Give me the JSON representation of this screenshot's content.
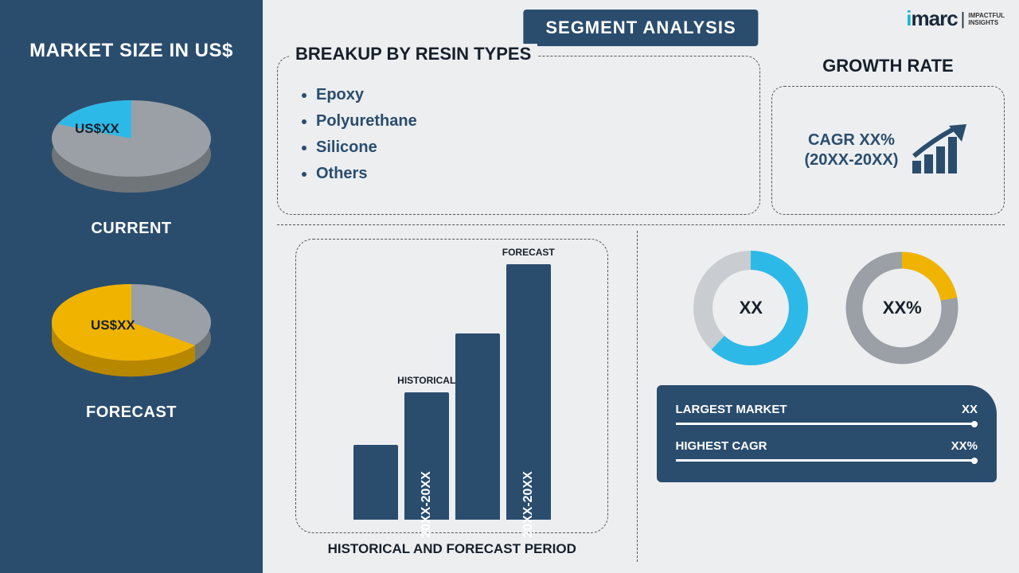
{
  "left": {
    "title": "MARKET SIZE IN US$",
    "current": {
      "label": "CURRENT",
      "value": "US$XX",
      "slice_color": "#2db9e8",
      "rest_color": "#9aa0a5",
      "side_color": "#6f7579",
      "slice_deg": 80
    },
    "forecast": {
      "label": "FORECAST",
      "value": "US$XX",
      "slice_color": "#f0b400",
      "rest_color": "#9aa0a5",
      "side_color": "#6f7579",
      "slice_side_color": "#b88700",
      "slice_deg": 200
    }
  },
  "segment_title": "SEGMENT ANALYSIS",
  "logo": {
    "brand": "imarc",
    "dot_color": "#f0b400",
    "accent_color": "#16b6d6",
    "tag1": "IMPACTFUL",
    "tag2": "INSIGHTS"
  },
  "breakup": {
    "title": "BREAKUP BY RESIN TYPES",
    "items": [
      "Epoxy",
      "Polyurethane",
      "Silicone",
      "Others"
    ]
  },
  "growth": {
    "title": "GROWTH RATE",
    "line1": "CAGR XX%",
    "line2": "(20XX-20XX)",
    "icon_color": "#2a4d6e"
  },
  "hist": {
    "caption": "HISTORICAL AND FORECAST PERIOD",
    "bars": [
      {
        "height_pct": 28,
        "top": "",
        "vtxt": ""
      },
      {
        "height_pct": 48,
        "top": "HISTORICAL",
        "vtxt": "20XX-20XX"
      },
      {
        "height_pct": 70,
        "top": "",
        "vtxt": ""
      },
      {
        "height_pct": 96,
        "top": "FORECAST",
        "vtxt": "20XX-20XX"
      }
    ],
    "bar_color": "#2a4d6e"
  },
  "donuts": {
    "d1": {
      "center": "XX",
      "ring_bg": "#c9ccd0",
      "ring_fg": "#2db9e8",
      "pct": 62
    },
    "d2": {
      "center": "XX%",
      "ring_bg": "#9aa0a5",
      "ring_fg": "#f0b400",
      "pct": 22
    }
  },
  "stats": {
    "r1_label": "LARGEST MARKET",
    "r1_val": "XX",
    "r2_label": "HIGHEST CAGR",
    "r2_val": "XX%",
    "bg": "#2a4d6e"
  },
  "colors": {
    "panel_bg": "#2a4d6e",
    "page_bg": "#eceef0"
  }
}
